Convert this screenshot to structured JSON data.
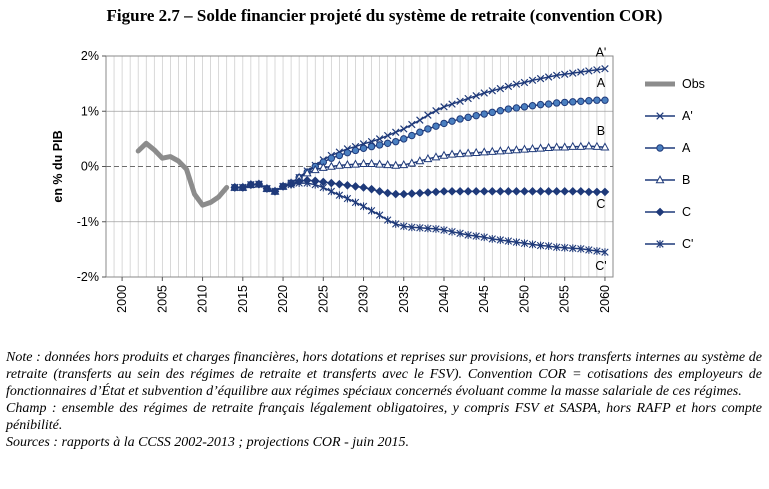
{
  "title": "Figure 2.7 – Solde financier projeté du système de retraite (convention COR)",
  "chart_data": {
    "type": "line",
    "ylabel": "en % du PIB",
    "xlabel": "",
    "xlim": [
      1998,
      2061
    ],
    "ylim": [
      -2,
      2
    ],
    "x_ticks": [
      2000,
      2005,
      2010,
      2015,
      2020,
      2025,
      2030,
      2035,
      2040,
      2045,
      2050,
      2055,
      2060
    ],
    "y_ticks": [
      {
        "value": 2,
        "label": "2%"
      },
      {
        "value": 1,
        "label": "1%"
      },
      {
        "value": 0,
        "label": "0%"
      },
      {
        "value": -1,
        "label": "-1%"
      },
      {
        "value": -2,
        "label": "-2%"
      }
    ],
    "legend_position": "right",
    "series": [
      {
        "name": "Obs",
        "color": "#8c8c8c",
        "marker": "none",
        "x": [
          2002,
          2003,
          2004,
          2005,
          2006,
          2007,
          2008,
          2009,
          2010,
          2011,
          2012,
          2013
        ],
        "y": [
          0.28,
          0.42,
          0.3,
          0.15,
          0.18,
          0.1,
          -0.05,
          -0.5,
          -0.7,
          -0.65,
          -0.55,
          -0.38
        ]
      },
      {
        "name": "A'",
        "end_label": "A'",
        "color": "#1f3a7a",
        "marker": "x",
        "x": [
          2014,
          2015,
          2016,
          2017,
          2018,
          2019,
          2020,
          2021,
          2022,
          2023,
          2024,
          2025,
          2026,
          2027,
          2028,
          2029,
          2030,
          2031,
          2032,
          2033,
          2034,
          2035,
          2036,
          2037,
          2038,
          2039,
          2040,
          2041,
          2042,
          2043,
          2044,
          2045,
          2046,
          2047,
          2048,
          2049,
          2050,
          2051,
          2052,
          2053,
          2054,
          2055,
          2056,
          2057,
          2058,
          2059,
          2060
        ],
        "y": [
          -0.38,
          -0.38,
          -0.33,
          -0.32,
          -0.4,
          -0.45,
          -0.36,
          -0.3,
          -0.2,
          -0.08,
          0.02,
          0.12,
          0.2,
          0.26,
          0.32,
          0.36,
          0.41,
          0.45,
          0.5,
          0.56,
          0.62,
          0.68,
          0.76,
          0.84,
          0.93,
          1.01,
          1.08,
          1.13,
          1.18,
          1.23,
          1.28,
          1.33,
          1.37,
          1.41,
          1.45,
          1.49,
          1.52,
          1.56,
          1.59,
          1.62,
          1.65,
          1.67,
          1.69,
          1.71,
          1.73,
          1.75,
          1.77
        ]
      },
      {
        "name": "A",
        "end_label": "A",
        "color": "#1f3a7a",
        "marker": "circle",
        "x": [
          2014,
          2015,
          2016,
          2017,
          2018,
          2019,
          2020,
          2021,
          2022,
          2023,
          2024,
          2025,
          2026,
          2027,
          2028,
          2029,
          2030,
          2031,
          2032,
          2033,
          2034,
          2035,
          2036,
          2037,
          2038,
          2039,
          2040,
          2041,
          2042,
          2043,
          2044,
          2045,
          2046,
          2047,
          2048,
          2049,
          2050,
          2051,
          2052,
          2053,
          2054,
          2055,
          2056,
          2057,
          2058,
          2059,
          2060
        ],
        "y": [
          -0.38,
          -0.38,
          -0.33,
          -0.32,
          -0.4,
          -0.45,
          -0.36,
          -0.3,
          -0.2,
          -0.1,
          0.0,
          0.08,
          0.15,
          0.2,
          0.25,
          0.29,
          0.33,
          0.36,
          0.39,
          0.42,
          0.45,
          0.5,
          0.56,
          0.62,
          0.68,
          0.73,
          0.78,
          0.82,
          0.86,
          0.89,
          0.92,
          0.95,
          0.98,
          1.01,
          1.04,
          1.06,
          1.08,
          1.1,
          1.12,
          1.13,
          1.15,
          1.16,
          1.17,
          1.18,
          1.19,
          1.2,
          1.2
        ]
      },
      {
        "name": "B",
        "end_label": "B",
        "color": "#1f3a7a",
        "marker": "triangle",
        "x": [
          2014,
          2015,
          2016,
          2017,
          2018,
          2019,
          2020,
          2021,
          2022,
          2023,
          2024,
          2025,
          2026,
          2027,
          2028,
          2029,
          2030,
          2031,
          2032,
          2033,
          2034,
          2035,
          2036,
          2037,
          2038,
          2039,
          2040,
          2041,
          2042,
          2043,
          2044,
          2045,
          2046,
          2047,
          2048,
          2049,
          2050,
          2051,
          2052,
          2053,
          2054,
          2055,
          2056,
          2057,
          2058,
          2059,
          2060
        ],
        "y": [
          -0.38,
          -0.38,
          -0.33,
          -0.32,
          -0.4,
          -0.45,
          -0.36,
          -0.3,
          -0.2,
          -0.12,
          -0.06,
          -0.02,
          0.0,
          0.02,
          0.03,
          0.04,
          0.05,
          0.05,
          0.04,
          0.03,
          0.02,
          0.03,
          0.06,
          0.1,
          0.14,
          0.17,
          0.2,
          0.22,
          0.23,
          0.24,
          0.25,
          0.26,
          0.27,
          0.28,
          0.29,
          0.3,
          0.31,
          0.32,
          0.33,
          0.34,
          0.35,
          0.35,
          0.36,
          0.36,
          0.37,
          0.36,
          0.35
        ]
      },
      {
        "name": "C",
        "end_label": "C",
        "color": "#1f3a7a",
        "marker": "diamond",
        "x": [
          2014,
          2015,
          2016,
          2017,
          2018,
          2019,
          2020,
          2021,
          2022,
          2023,
          2024,
          2025,
          2026,
          2027,
          2028,
          2029,
          2030,
          2031,
          2032,
          2033,
          2034,
          2035,
          2036,
          2037,
          2038,
          2039,
          2040,
          2041,
          2042,
          2043,
          2044,
          2045,
          2046,
          2047,
          2048,
          2049,
          2050,
          2051,
          2052,
          2053,
          2054,
          2055,
          2056,
          2057,
          2058,
          2059,
          2060
        ],
        "y": [
          -0.38,
          -0.38,
          -0.33,
          -0.32,
          -0.4,
          -0.45,
          -0.36,
          -0.32,
          -0.27,
          -0.25,
          -0.26,
          -0.28,
          -0.3,
          -0.32,
          -0.34,
          -0.36,
          -0.38,
          -0.41,
          -0.45,
          -0.48,
          -0.5,
          -0.5,
          -0.49,
          -0.48,
          -0.47,
          -0.46,
          -0.45,
          -0.45,
          -0.45,
          -0.45,
          -0.45,
          -0.45,
          -0.45,
          -0.45,
          -0.45,
          -0.45,
          -0.45,
          -0.45,
          -0.45,
          -0.45,
          -0.45,
          -0.45,
          -0.45,
          -0.45,
          -0.46,
          -0.46,
          -0.46
        ]
      },
      {
        "name": "C'",
        "end_label": "C'",
        "color": "#1f3a7a",
        "marker": "asterisk",
        "x": [
          2014,
          2015,
          2016,
          2017,
          2018,
          2019,
          2020,
          2021,
          2022,
          2023,
          2024,
          2025,
          2026,
          2027,
          2028,
          2029,
          2030,
          2031,
          2032,
          2033,
          2034,
          2035,
          2036,
          2037,
          2038,
          2039,
          2040,
          2041,
          2042,
          2043,
          2044,
          2045,
          2046,
          2047,
          2048,
          2049,
          2050,
          2051,
          2052,
          2053,
          2054,
          2055,
          2056,
          2057,
          2058,
          2059,
          2060
        ],
        "y": [
          -0.38,
          -0.38,
          -0.33,
          -0.32,
          -0.4,
          -0.45,
          -0.36,
          -0.33,
          -0.3,
          -0.3,
          -0.33,
          -0.38,
          -0.45,
          -0.52,
          -0.58,
          -0.65,
          -0.72,
          -0.8,
          -0.88,
          -0.97,
          -1.04,
          -1.08,
          -1.1,
          -1.11,
          -1.12,
          -1.13,
          -1.15,
          -1.18,
          -1.21,
          -1.24,
          -1.26,
          -1.28,
          -1.31,
          -1.33,
          -1.35,
          -1.37,
          -1.39,
          -1.41,
          -1.43,
          -1.44,
          -1.46,
          -1.47,
          -1.48,
          -1.49,
          -1.51,
          -1.53,
          -1.55
        ]
      }
    ]
  },
  "notes": {
    "note": "Note : données hors produits et charges financières, hors dotations et reprises sur provisions, et hors transferts internes au système de retraite (transferts au sein des régimes de retraite et transferts avec le FSV). Convention COR = cotisations des employeurs de fonctionnaires d’État et subvention d’équilibre aux régimes spéciaux concernés évoluant comme la masse salariale de ces régimes.",
    "champ": "Champ : ensemble des régimes de retraite français légalement obligatoires, y compris FSV et SASPA, hors RAFP et hors compte pénibilité.",
    "sources": "Sources : rapports à la CCSS 2002-2013 ; projections COR - juin 2015."
  }
}
